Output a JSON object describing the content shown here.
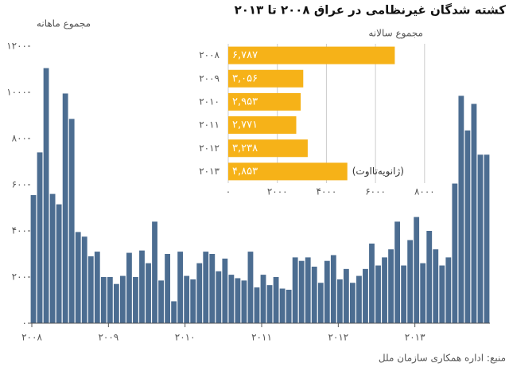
{
  "title": "کشته شدگان غیرنظامی در عراق ۲۰۰۸ تا ۲۰۱۳",
  "source": "منبع: اداره همکاری سازمان ملل",
  "chart_data": [
    {
      "type": "bar",
      "ylabel": "مجموع ماهانه",
      "color": "#4c6d91",
      "categories": [
        "۲۰۰۸",
        null,
        null,
        null,
        null,
        null,
        null,
        null,
        null,
        null,
        null,
        null,
        "۲۰۰۹",
        null,
        null,
        null,
        null,
        null,
        null,
        null,
        null,
        null,
        null,
        null,
        "۲۰۱۰",
        null,
        null,
        null,
        null,
        null,
        null,
        null,
        null,
        null,
        null,
        null,
        "۲۰۱۱",
        null,
        null,
        null,
        null,
        null,
        null,
        null,
        null,
        null,
        null,
        null,
        "۲۰۱۲",
        null,
        null,
        null,
        null,
        null,
        null,
        null,
        null,
        null,
        null,
        null,
        "۲۰۱۳",
        null,
        null,
        null,
        null,
        null,
        null,
        null,
        null,
        null,
        null,
        null
      ],
      "values": [
        555,
        740,
        1105,
        560,
        515,
        995,
        885,
        395,
        375,
        290,
        310,
        200,
        200,
        170,
        205,
        305,
        200,
        315,
        260,
        440,
        185,
        300,
        95,
        310,
        205,
        190,
        260,
        310,
        300,
        225,
        280,
        210,
        195,
        185,
        310,
        155,
        210,
        165,
        200,
        150,
        145,
        285,
        270,
        285,
        245,
        175,
        270,
        295,
        190,
        235,
        175,
        205,
        235,
        345,
        250,
        285,
        320,
        440,
        250,
        360,
        460,
        260,
        400,
        320,
        250,
        285,
        605,
        985,
        835,
        950,
        730,
        730
      ],
      "ylim": [
        0,
        1200
      ],
      "yticks": [
        {
          "value": 0,
          "label": "۰"
        },
        {
          "value": 200,
          "label": "۲۰۰"
        },
        {
          "value": 400,
          "label": "۴۰۰"
        },
        {
          "value": 600,
          "label": "۶۰۰"
        },
        {
          "value": 800,
          "label": "۸۰۰"
        },
        {
          "value": 1000,
          "label": "۱۰۰۰"
        },
        {
          "value": 1200,
          "label": "۱۲۰۰"
        }
      ]
    },
    {
      "type": "hbar",
      "title": "مجموع سالانه",
      "color": "#f6b218",
      "annotation": "(ژانویه‌تا‌اوت)",
      "categories": [
        "۲۰۰۸",
        "۲۰۰۹",
        "۲۰۱۰",
        "۲۰۱۱",
        "۲۰۱۲",
        "۲۰۱۳"
      ],
      "values": [
        6787,
        3056,
        2953,
        2771,
        3238,
        4853
      ],
      "value_labels": [
        "۶,۷۸۷",
        "۳,۰۵۶",
        "۲,۹۵۳",
        "۲,۷۷۱",
        "۳,۲۳۸",
        "۴,۸۵۳"
      ],
      "xlim": [
        0,
        8200
      ],
      "xticks": [
        {
          "value": 0,
          "label": "۰"
        },
        {
          "value": 2000,
          "label": "۲۰۰۰"
        },
        {
          "value": 4000,
          "label": "۴۰۰۰"
        },
        {
          "value": 6000,
          "label": "۶۰۰۰"
        },
        {
          "value": 8000,
          "label": "۸۰۰۰"
        }
      ],
      "grid": true
    }
  ]
}
